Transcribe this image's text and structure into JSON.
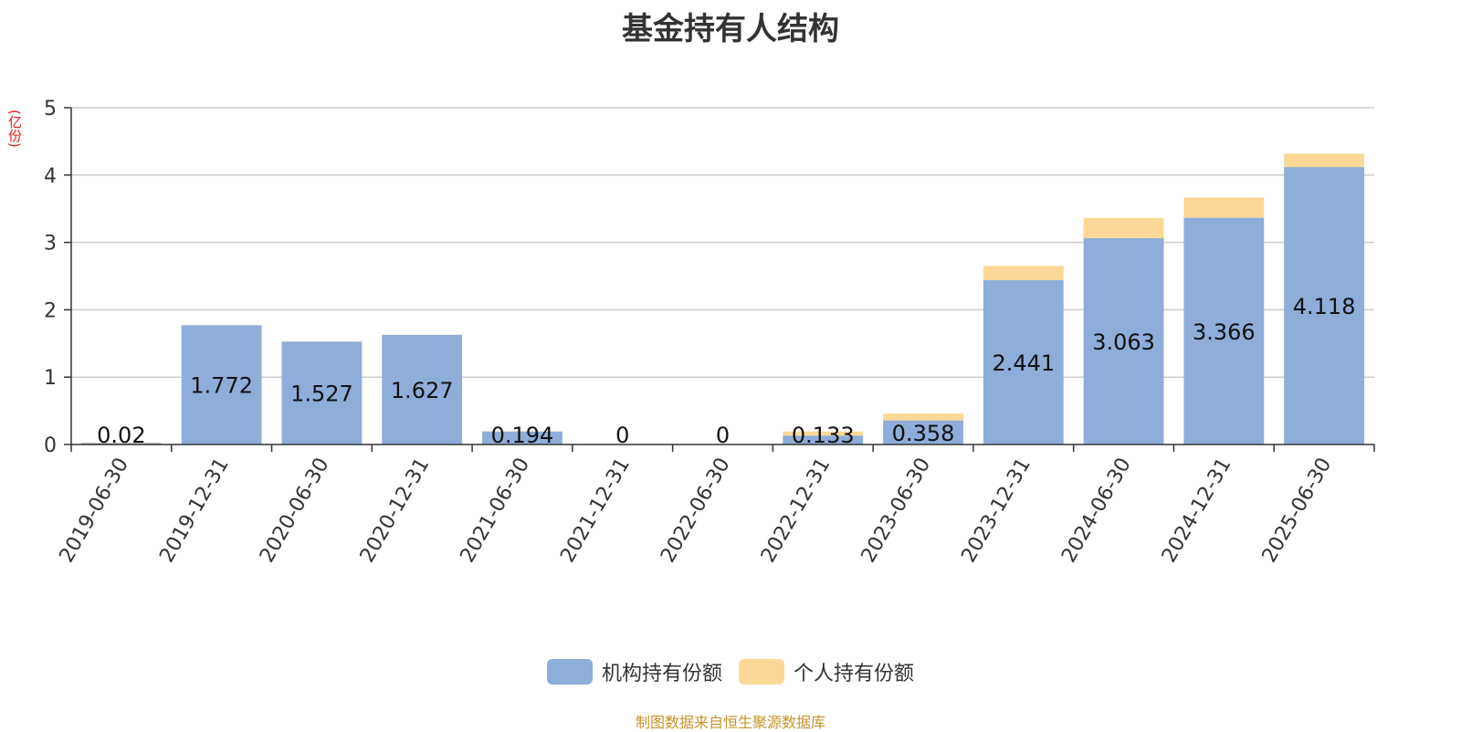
{
  "chart_data": {
    "type": "bar",
    "stacked": true,
    "title": "基金持有人结构",
    "ylabel": "(亿份)",
    "ylim": [
      0,
      5
    ],
    "yticks": [
      0,
      1,
      2,
      3,
      4,
      5
    ],
    "grid": true,
    "legend_position": "bottom",
    "categories": [
      "2019-06-30",
      "2019-12-31",
      "2020-06-30",
      "2020-12-31",
      "2021-06-30",
      "2021-12-31",
      "2022-06-30",
      "2022-12-31",
      "2023-06-30",
      "2023-12-31",
      "2024-06-30",
      "2024-12-31",
      "2025-06-30"
    ],
    "series": [
      {
        "name": "机构持有份额",
        "color": "#8eadd9",
        "values": [
          0.02,
          1.772,
          1.527,
          1.627,
          0.194,
          0,
          0,
          0.133,
          0.358,
          2.441,
          3.063,
          3.366,
          4.118
        ],
        "labels": [
          "0.02",
          "1.772",
          "1.527",
          "1.627",
          "0.194",
          "0",
          "0",
          "0.133",
          "0.358",
          "2.441",
          "3.063",
          "3.366",
          "4.118"
        ]
      },
      {
        "name": "个人持有份额",
        "color": "#fcd896",
        "values": [
          0.005,
          0.003,
          0.003,
          0.003,
          0.003,
          0.01,
          0.005,
          0.06,
          0.1,
          0.21,
          0.3,
          0.3,
          0.2
        ]
      }
    ]
  },
  "source": "制图数据来自恒生聚源数据库"
}
